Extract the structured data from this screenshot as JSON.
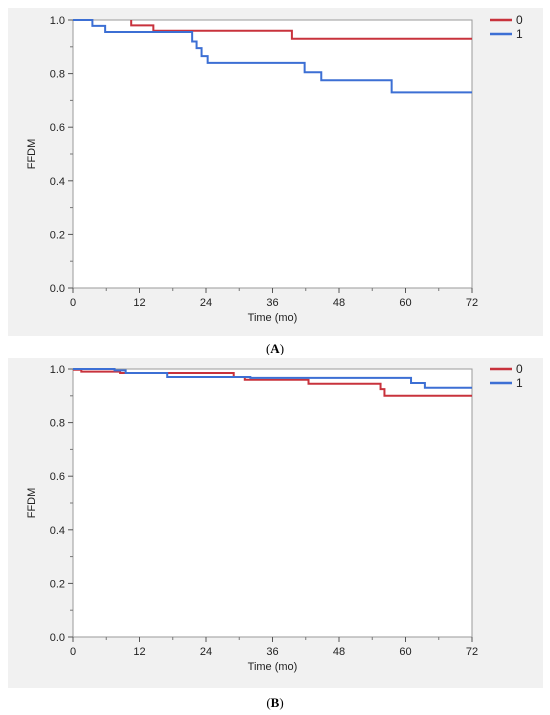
{
  "chart_data": [
    {
      "type": "line",
      "step": true,
      "panel_label": "A",
      "xlabel": "Time (mo)",
      "ylabel": "FFDM",
      "xlim": [
        0,
        72
      ],
      "ylim": [
        0,
        1
      ],
      "xticks": [
        0,
        12,
        24,
        36,
        48,
        60,
        72
      ],
      "yticks": [
        0.0,
        0.2,
        0.4,
        0.6,
        0.8,
        1.0
      ],
      "legend_position": "top-right",
      "series": [
        {
          "name": "0",
          "color": "#c8323c",
          "points": [
            [
              10.5,
              1.0
            ],
            [
              10.5,
              0.98
            ],
            [
              14.5,
              0.98
            ],
            [
              14.5,
              0.96
            ],
            [
              39.5,
              0.96
            ],
            [
              39.5,
              0.93
            ],
            [
              72,
              0.93
            ]
          ]
        },
        {
          "name": "1",
          "color": "#3c6fd4",
          "points": [
            [
              0,
              1.0
            ],
            [
              3.5,
              1.0
            ],
            [
              3.5,
              0.978
            ],
            [
              5.8,
              0.978
            ],
            [
              5.8,
              0.955
            ],
            [
              21.5,
              0.955
            ],
            [
              21.5,
              0.92
            ],
            [
              22.3,
              0.92
            ],
            [
              22.3,
              0.895
            ],
            [
              23.2,
              0.895
            ],
            [
              23.2,
              0.865
            ],
            [
              24.3,
              0.865
            ],
            [
              24.3,
              0.84
            ],
            [
              41.8,
              0.84
            ],
            [
              41.8,
              0.805
            ],
            [
              44.8,
              0.805
            ],
            [
              44.8,
              0.775
            ],
            [
              57.5,
              0.775
            ],
            [
              57.5,
              0.73
            ],
            [
              72,
              0.73
            ]
          ]
        }
      ]
    },
    {
      "type": "line",
      "step": true,
      "panel_label": "B",
      "xlabel": "Time (mo)",
      "ylabel": "FFDM",
      "xlim": [
        0,
        72
      ],
      "ylim": [
        0,
        1
      ],
      "xticks": [
        0,
        12,
        24,
        36,
        48,
        60,
        72
      ],
      "yticks": [
        0.0,
        0.2,
        0.4,
        0.6,
        0.8,
        1.0
      ],
      "legend_position": "top-right",
      "series": [
        {
          "name": "0",
          "color": "#c8323c",
          "points": [
            [
              0,
              0.997
            ],
            [
              1.5,
              0.997
            ],
            [
              1.5,
              0.99
            ],
            [
              8.5,
              0.99
            ],
            [
              8.5,
              0.985
            ],
            [
              29,
              0.985
            ],
            [
              29,
              0.97
            ],
            [
              31,
              0.97
            ],
            [
              31,
              0.96
            ],
            [
              42.5,
              0.96
            ],
            [
              42.5,
              0.945
            ],
            [
              55.5,
              0.945
            ],
            [
              55.5,
              0.925
            ],
            [
              56.2,
              0.925
            ],
            [
              56.2,
              0.9
            ],
            [
              72,
              0.9
            ]
          ]
        },
        {
          "name": "1",
          "color": "#3c6fd4",
          "points": [
            [
              0,
              1.0
            ],
            [
              7.5,
              1.0
            ],
            [
              7.5,
              0.995
            ],
            [
              9.5,
              0.995
            ],
            [
              9.5,
              0.985
            ],
            [
              17,
              0.985
            ],
            [
              17,
              0.97
            ],
            [
              32,
              0.97
            ],
            [
              32,
              0.967
            ],
            [
              61,
              0.967
            ],
            [
              61,
              0.948
            ],
            [
              63.5,
              0.948
            ],
            [
              63.5,
              0.93
            ],
            [
              72,
              0.93
            ]
          ]
        }
      ]
    }
  ]
}
